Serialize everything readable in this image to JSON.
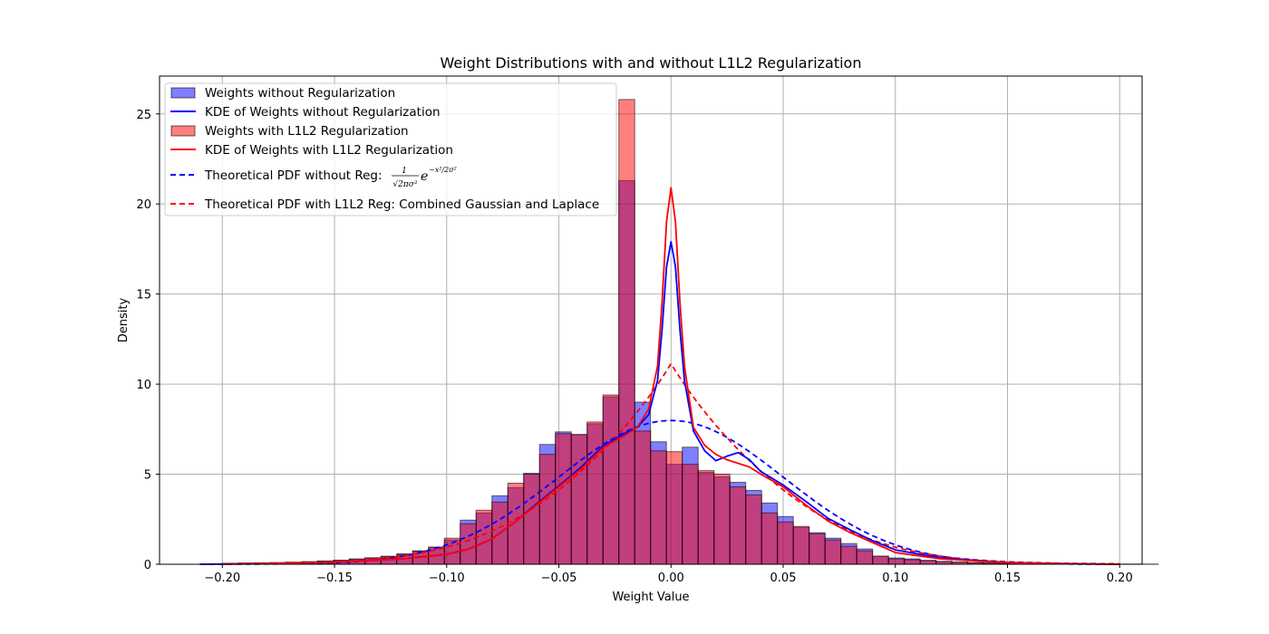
{
  "chart_data": {
    "type": "bar",
    "title": "Weight Distributions with and without L1L2 Regularization",
    "xlabel": "Weight Value",
    "ylabel": "Density",
    "xlim": [
      -0.228,
      0.21
    ],
    "ylim": [
      0,
      27.1
    ],
    "xticks": [
      -0.2,
      -0.15,
      -0.1,
      -0.05,
      0.0,
      0.05,
      0.1,
      0.15,
      0.2
    ],
    "xtick_labels": [
      "−0.20",
      "−0.15",
      "−0.10",
      "−0.05",
      "0.00",
      "0.05",
      "0.10",
      "0.15",
      "0.20"
    ],
    "yticks": [
      0,
      5,
      10,
      15,
      20,
      25
    ],
    "ytick_labels": [
      "0",
      "5",
      "10",
      "15",
      "20",
      "25"
    ],
    "grid": true,
    "legend_placement": "top-left",
    "colors": {
      "no_reg": "#0000ff",
      "l1l2": "#ff0000",
      "bar_edge": "#000000"
    },
    "bins": {
      "start": -0.2,
      "width": 0.00707,
      "without_reg": [
        0.05,
        0.07,
        0.08,
        0.09,
        0.12,
        0.15,
        0.18,
        0.22,
        0.28,
        0.36,
        0.45,
        0.58,
        0.75,
        0.95,
        1.35,
        2.45,
        2.85,
        3.8,
        4.25,
        5.05,
        6.65,
        7.35,
        7.2,
        7.8,
        9.3,
        21.3,
        9.0,
        6.8,
        5.55,
        6.5,
        5.1,
        4.85,
        4.55,
        4.1,
        3.4,
        2.65,
        2.05,
        1.75,
        1.45,
        1.15,
        0.85,
        0.45,
        0.35,
        0.3,
        0.22,
        0.16,
        0.12,
        0.09,
        0.07,
        0.05,
        0.04,
        0.03,
        0.02,
        0.015,
        0.01,
        0.008,
        0.006,
        0.005,
        0.004
      ],
      "with_l1l2": [
        0.05,
        0.06,
        0.07,
        0.09,
        0.1,
        0.13,
        0.18,
        0.22,
        0.3,
        0.35,
        0.42,
        0.55,
        0.72,
        0.95,
        1.45,
        2.25,
        3.0,
        3.45,
        4.5,
        5.0,
        6.1,
        7.25,
        7.2,
        7.9,
        9.4,
        25.8,
        7.4,
        6.3,
        6.25,
        5.55,
        5.2,
        5.0,
        4.3,
        3.85,
        2.85,
        2.35,
        2.1,
        1.7,
        1.35,
        1.0,
        0.75,
        0.45,
        0.3,
        0.25,
        0.2,
        0.15,
        0.12,
        0.09,
        0.06,
        0.05,
        0.04,
        0.03,
        0.02,
        0.015,
        0.01,
        0.008,
        0.006,
        0.005,
        0.004
      ]
    },
    "series": [
      {
        "name": "Weights without Regularization",
        "kind": "hist",
        "color": "#0000ff",
        "alpha": 0.5
      },
      {
        "name": "KDE of Weights without Regularization",
        "kind": "line",
        "color": "#0000ff",
        "dash": "solid"
      },
      {
        "name": "Weights with L1L2 Regularization",
        "kind": "hist",
        "color": "#ff0000",
        "alpha": 0.5
      },
      {
        "name": "KDE of Weights with L1L2 Regularization",
        "kind": "line",
        "color": "#ff0000",
        "dash": "solid"
      },
      {
        "name": "Theoretical PDF without Reg: ",
        "kind": "line",
        "color": "#0000ff",
        "dash": "dashed",
        "formula": {
          "num": "1",
          "den": "√2πσ²",
          "base": "e",
          "exp": "−x²/2σ²"
        }
      },
      {
        "name": "Theoretical PDF with L1L2 Reg: Combined Gaussian and Laplace",
        "kind": "line",
        "color": "#ff0000",
        "dash": "dashed"
      }
    ],
    "kde_without_reg": {
      "x": [
        -0.21,
        -0.18,
        -0.15,
        -0.12,
        -0.1,
        -0.09,
        -0.08,
        -0.07,
        -0.06,
        -0.05,
        -0.04,
        -0.03,
        -0.02,
        -0.015,
        -0.01,
        -0.006,
        -0.004,
        -0.002,
        0.0,
        0.002,
        0.004,
        0.006,
        0.01,
        0.015,
        0.02,
        0.025,
        0.03,
        0.035,
        0.04,
        0.05,
        0.06,
        0.07,
        0.08,
        0.09,
        0.1,
        0.12,
        0.15,
        0.18,
        0.2
      ],
      "y": [
        0.0,
        0.04,
        0.12,
        0.3,
        0.55,
        0.85,
        1.4,
        2.3,
        3.35,
        4.35,
        5.4,
        6.6,
        7.3,
        7.6,
        8.3,
        10.2,
        13.0,
        16.5,
        17.9,
        16.5,
        13.0,
        10.2,
        7.4,
        6.3,
        5.75,
        6.0,
        6.2,
        5.8,
        5.15,
        4.4,
        3.5,
        2.55,
        1.9,
        1.3,
        0.8,
        0.35,
        0.1,
        0.03,
        0.0
      ]
    },
    "kde_with_l1l2": {
      "x": [
        -0.2,
        -0.18,
        -0.15,
        -0.12,
        -0.1,
        -0.09,
        -0.08,
        -0.07,
        -0.06,
        -0.05,
        -0.04,
        -0.03,
        -0.02,
        -0.015,
        -0.01,
        -0.006,
        -0.004,
        -0.002,
        0.0,
        0.002,
        0.004,
        0.006,
        0.01,
        0.015,
        0.02,
        0.025,
        0.03,
        0.035,
        0.04,
        0.05,
        0.06,
        0.07,
        0.08,
        0.09,
        0.1,
        0.12,
        0.15,
        0.18,
        0.2
      ],
      "y": [
        0.0,
        0.04,
        0.12,
        0.3,
        0.55,
        0.85,
        1.4,
        2.3,
        3.3,
        4.3,
        5.3,
        6.5,
        7.2,
        7.6,
        8.6,
        11.0,
        14.5,
        19.0,
        20.9,
        19.0,
        14.5,
        11.0,
        7.6,
        6.6,
        6.1,
        5.8,
        5.6,
        5.4,
        5.0,
        4.3,
        3.3,
        2.4,
        1.75,
        1.2,
        0.65,
        0.3,
        0.08,
        0.02,
        0.0
      ]
    },
    "pdf_gaussian": {
      "mean": 0.0,
      "sigma": 0.05,
      "xmin": -0.21,
      "xmax": 0.2
    },
    "pdf_combined": {
      "mean": 0.0,
      "sigma": 0.05,
      "laplace_b": 0.035,
      "weight_gauss": 0.5,
      "xmin": -0.2,
      "xmax": 0.2
    }
  }
}
